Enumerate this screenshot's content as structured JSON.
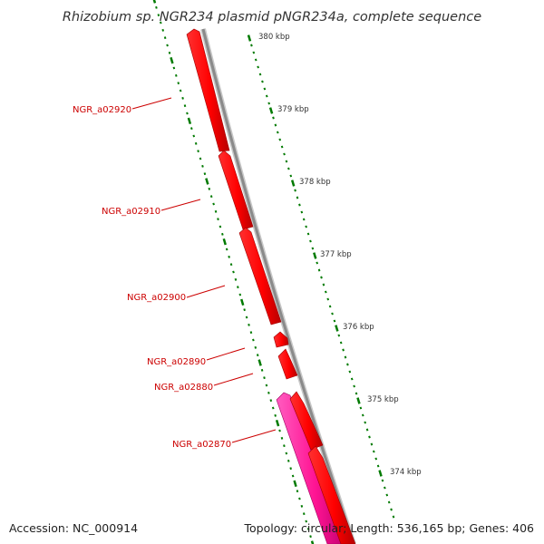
{
  "title": "Rhizobium sp. NGR234 plasmid pNGR234a, complete sequence",
  "footer": {
    "accession": "Accession: NC_000914",
    "summary": "Topology: circular; Length: 536,165 bp; Genes: 406"
  },
  "ruler_labels": [
    "380 kbp",
    "379 kbp",
    "378 kbp",
    "377 kbp",
    "376 kbp",
    "375 kbp",
    "374 kbp"
  ],
  "gene_labels": [
    "NGR_a02920",
    "NGR_a02910",
    "NGR_a02900",
    "NGR_a02890",
    "NGR_a02880",
    "NGR_a02870"
  ],
  "colors": {
    "gene_fill": "#ff0000",
    "gene_edge": "#b30000",
    "pink_fill": "#ff1493",
    "backbone": "#8a8a8a",
    "tick_green": "#007a00",
    "label_red": "#cc0000"
  }
}
